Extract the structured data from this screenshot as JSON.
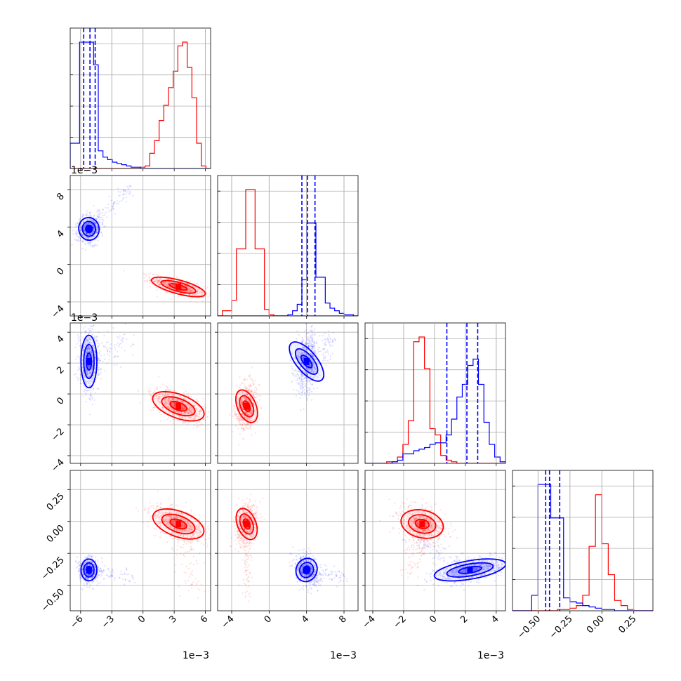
{
  "chart_data": {
    "type": "corner",
    "colors": {
      "series_a": "#0000ff",
      "series_b": "#ff0000"
    },
    "grid": true,
    "parameters": [
      {
        "index": 0,
        "range": [
          -7.0,
          6.5
        ],
        "ticks": [
          {
            "value": -6,
            "label": "−6"
          },
          {
            "value": -3,
            "label": "−3"
          },
          {
            "value": 0,
            "label": "0"
          },
          {
            "value": 3,
            "label": "3"
          },
          {
            "value": 6,
            "label": "6"
          }
        ],
        "x_exponent": "1e−3",
        "y_exponent": ""
      },
      {
        "index": 1,
        "range": [
          -5.5,
          9.5
        ],
        "ticks": [
          {
            "value": -4,
            "label": "−4"
          },
          {
            "value": 0,
            "label": "0"
          },
          {
            "value": 4,
            "label": "4"
          },
          {
            "value": 8,
            "label": "8"
          }
        ],
        "x_exponent": "1e−3",
        "y_exponent": "1e−3"
      },
      {
        "index": 2,
        "range": [
          -4.5,
          4.6
        ],
        "ticks": [
          {
            "value": -4,
            "label": "−4"
          },
          {
            "value": -2,
            "label": "−2"
          },
          {
            "value": 0,
            "label": "0"
          },
          {
            "value": 2,
            "label": "2"
          },
          {
            "value": 4,
            "label": "4"
          }
        ],
        "x_exponent": "1e−3",
        "y_exponent": "1e−3"
      },
      {
        "index": 3,
        "range": [
          -0.7,
          0.4
        ],
        "ticks": [
          {
            "value": -0.5,
            "label": "−0.50"
          },
          {
            "value": -0.25,
            "label": "−0.25"
          },
          {
            "value": 0.0,
            "label": "0.00"
          },
          {
            "value": 0.25,
            "label": "0.25"
          }
        ],
        "x_exponent": "",
        "y_exponent": ""
      }
    ],
    "histograms": [
      {
        "param": 0,
        "edges": [
          -7.0,
          -6.55,
          -6.1,
          -5.65,
          -5.2,
          -4.75,
          -4.3,
          -3.85,
          -3.4,
          -2.95,
          -2.5,
          -2.05,
          -1.6,
          -1.15,
          -0.7,
          -0.25,
          0.2,
          0.65,
          1.1,
          1.55,
          2.0,
          2.45,
          2.9,
          3.35,
          3.8,
          4.25,
          4.7,
          5.15,
          5.6,
          6.05,
          6.5
        ],
        "series_a": [
          0.2,
          0.2,
          1.0,
          1.0,
          1.0,
          0.82,
          0.14,
          0.09,
          0.07,
          0.05,
          0.04,
          0.03,
          0.02,
          0.01,
          0.01,
          0,
          0,
          0,
          0,
          0,
          0,
          0,
          0,
          0,
          0,
          0,
          0,
          0,
          0,
          0
        ],
        "series_b": [
          0,
          0,
          0,
          0,
          0,
          0,
          0,
          0,
          0,
          0,
          0,
          0,
          0,
          0,
          0,
          0.01,
          0.02,
          0.12,
          0.22,
          0.38,
          0.5,
          0.64,
          0.77,
          0.97,
          1.0,
          0.8,
          0.56,
          0.2,
          0.02,
          0
        ],
        "quantiles": [
          -5.7,
          -5.1,
          -4.6
        ]
      },
      {
        "param": 1,
        "edges": [
          -5.5,
          -5.0,
          -4.5,
          -4.0,
          -3.5,
          -3.0,
          -2.5,
          -2.0,
          -1.5,
          -1.0,
          -0.5,
          0.0,
          0.5,
          1.0,
          1.5,
          2.0,
          2.5,
          3.0,
          3.5,
          4.0,
          4.5,
          5.0,
          5.5,
          6.0,
          6.5,
          7.0,
          7.5,
          8.0,
          8.5,
          9.0,
          9.5
        ],
        "series_a": [
          0,
          0,
          0,
          0,
          0,
          0,
          0,
          0,
          0,
          0,
          0,
          0,
          0,
          0,
          0,
          0.01,
          0.04,
          0.09,
          0.28,
          0.72,
          0.72,
          0.3,
          0.3,
          0.1,
          0.06,
          0.04,
          0.02,
          0.01,
          0.01,
          0
        ],
        "series_b": [
          0,
          0.04,
          0.04,
          0.12,
          0.52,
          0.52,
          0.98,
          0.98,
          0.52,
          0.52,
          0.05,
          0.01,
          0,
          0,
          0,
          0,
          0,
          0,
          0,
          0,
          0,
          0,
          0,
          0,
          0,
          0,
          0,
          0,
          0,
          0
        ],
        "quantiles": [
          3.5,
          4.1,
          4.9
        ]
      },
      {
        "param": 2,
        "edges": [
          -4.5,
          -4.15,
          -3.8,
          -3.45,
          -3.1,
          -2.75,
          -2.4,
          -2.05,
          -1.7,
          -1.35,
          -1.0,
          -0.65,
          -0.3,
          0.05,
          0.4,
          0.75,
          1.1,
          1.45,
          1.8,
          2.15,
          2.5,
          2.85,
          3.2,
          3.55,
          3.9,
          4.25,
          4.6
        ],
        "series_a": [
          0,
          0,
          0,
          0,
          0,
          0.01,
          0.02,
          0.06,
          0.06,
          0.08,
          0.09,
          0.1,
          0.12,
          0.13,
          0.13,
          0.18,
          0.28,
          0.42,
          0.5,
          0.62,
          0.66,
          0.5,
          0.26,
          0.12,
          0.04,
          0.01
        ],
        "series_b": [
          0,
          0,
          0,
          0,
          0.01,
          0.01,
          0.04,
          0.12,
          0.27,
          0.77,
          0.8,
          0.6,
          0.22,
          0.18,
          0.05,
          0.02,
          0.01,
          0,
          0,
          0,
          0,
          0,
          0,
          0,
          0,
          0
        ],
        "quantiles": [
          0.8,
          2.1,
          2.8
        ]
      },
      {
        "param": 3,
        "edges": [
          -0.7,
          -0.65,
          -0.6,
          -0.55,
          -0.5,
          -0.45,
          -0.4,
          -0.35,
          -0.3,
          -0.25,
          -0.2,
          -0.15,
          -0.1,
          -0.05,
          0.0,
          0.05,
          0.1,
          0.15,
          0.2,
          0.25,
          0.3,
          0.35,
          0.4
        ],
        "series_a": [
          0,
          0,
          0,
          0.12,
          0.98,
          0.98,
          0.72,
          0.72,
          0.1,
          0.07,
          0.06,
          0.04,
          0.03,
          0.02,
          0.01,
          0.01,
          0,
          0,
          0,
          0,
          0,
          0,
          0
        ],
        "series_b": [
          0,
          0,
          0,
          0,
          0,
          0,
          0,
          0.01,
          0.01,
          0.02,
          0.04,
          0.12,
          0.5,
          0.9,
          0.52,
          0.28,
          0.08,
          0.04,
          0.01,
          0,
          0,
          0,
          0
        ],
        "quantiles": [
          -0.44,
          -0.41,
          -0.33
        ]
      }
    ],
    "scatter_2d": [
      {
        "x": 0,
        "y": 1,
        "series_a": {
          "center": [
            -5.2,
            3.8
          ],
          "spread": [
            0.55,
            0.75
          ],
          "corr": 0.15,
          "tail_to": [
            -1.0,
            8.5
          ]
        },
        "series_b": {
          "center": [
            3.4,
            -2.4
          ],
          "spread": [
            1.3,
            0.55
          ],
          "corr": -0.7,
          "tail_to": null
        }
      },
      {
        "x": 0,
        "y": 2,
        "series_a": {
          "center": [
            -5.2,
            2.1
          ],
          "spread": [
            0.45,
            1.0
          ],
          "corr": 0.0,
          "tail_to": [
            -1.0,
            3.5
          ]
        },
        "series_b": {
          "center": [
            3.4,
            -0.8
          ],
          "spread": [
            1.3,
            0.55
          ],
          "corr": -0.6,
          "tail_to": null
        }
      },
      {
        "x": 0,
        "y": 3,
        "series_a": {
          "center": [
            -5.2,
            -0.38
          ],
          "spread": [
            0.45,
            0.05
          ],
          "corr": 0.0,
          "tail_to": [
            -1.0,
            -0.45
          ]
        },
        "series_b": {
          "center": [
            3.4,
            -0.02
          ],
          "spread": [
            1.3,
            0.07
          ],
          "corr": -0.55,
          "tail_to": [
            5.0,
            -0.55
          ]
        }
      },
      {
        "x": 1,
        "y": 2,
        "series_a": {
          "center": [
            4.0,
            2.1
          ],
          "spread": [
            0.6,
            1.0
          ],
          "corr": 0.3,
          "tail_to": [
            7.0,
            3.5
          ]
        },
        "series_b": {
          "center": [
            -2.4,
            -0.8
          ],
          "spread": [
            0.55,
            0.7
          ],
          "corr": 0.2,
          "tail_to": null
        }
      },
      {
        "x": 1,
        "y": 3,
        "series_a": {
          "center": [
            4.0,
            -0.38
          ],
          "spread": [
            0.6,
            0.06
          ],
          "corr": -0.3,
          "tail_to": [
            8.0,
            -0.45
          ]
        },
        "series_b": {
          "center": [
            -2.4,
            -0.02
          ],
          "spread": [
            0.55,
            0.08
          ],
          "corr": 0.2,
          "tail_to": [
            -2.4,
            -0.6
          ]
        }
      },
      {
        "x": 2,
        "y": 3,
        "series_a": {
          "center": [
            2.3,
            -0.38
          ],
          "spread": [
            1.2,
            0.05
          ],
          "corr": 0.5,
          "tail_to": [
            -1.5,
            -0.15
          ]
        },
        "series_b": {
          "center": [
            -0.8,
            -0.02
          ],
          "spread": [
            0.75,
            0.07
          ],
          "corr": -0.3,
          "tail_to": [
            -1.5,
            -0.4
          ]
        }
      }
    ]
  }
}
